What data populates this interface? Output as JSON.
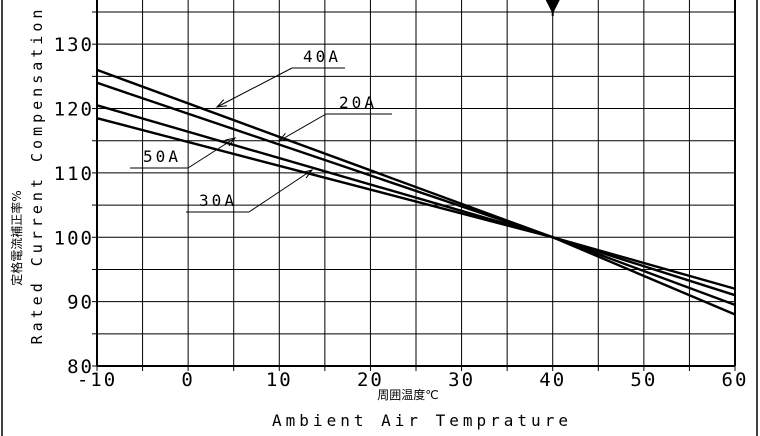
{
  "chart_data": {
    "type": "line",
    "xlabel_jp": "周囲温度℃",
    "xlabel_en": "Ambient Air Temprature",
    "ylabel_jp": "定格電流補正率%",
    "ylabel_en": "Rated Current Compensation",
    "xlim": [
      -10,
      60
    ],
    "ylim": [
      80,
      135
    ],
    "x_ticks": [
      -10,
      0,
      10,
      20,
      30,
      40,
      50,
      60
    ],
    "x_tick_labels": [
      "-10",
      "0",
      "10",
      "20",
      "30",
      "40",
      "50",
      "60"
    ],
    "y_ticks": [
      80,
      90,
      100,
      110,
      120,
      130
    ],
    "y_tick_labels": [
      "80",
      "90",
      "100",
      "110",
      "120",
      "130"
    ],
    "grid": true,
    "reference_marker_x": 40,
    "series": [
      {
        "name": "40A",
        "x": [
          -10,
          40,
          60
        ],
        "values": [
          126,
          100,
          88
        ]
      },
      {
        "name": "20A",
        "x": [
          -10,
          40,
          60
        ],
        "values": [
          124,
          100,
          89.5
        ]
      },
      {
        "name": "50A",
        "x": [
          -10,
          40,
          60
        ],
        "values": [
          120.5,
          100,
          91
        ]
      },
      {
        "name": "30A",
        "x": [
          -10,
          40,
          60
        ],
        "values": [
          118.5,
          100,
          92
        ]
      }
    ]
  }
}
